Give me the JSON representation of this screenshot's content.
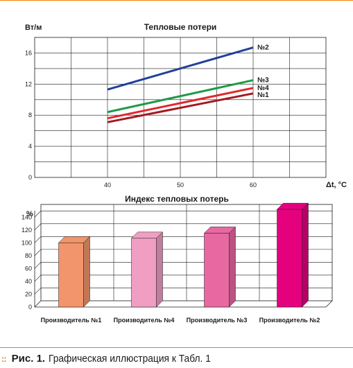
{
  "chart_data": [
    {
      "type": "line",
      "title": "Тепловые потери",
      "ylabel": "Вт/м",
      "xlabel": "Δt, °C",
      "x": [
        40,
        60
      ],
      "xticks": [
        "40",
        "50",
        "60"
      ],
      "yticks": [
        "0",
        "4",
        "8",
        "12",
        "16"
      ],
      "xlim": [
        30,
        70
      ],
      "ylim": [
        0,
        18
      ],
      "grid": true,
      "series": [
        {
          "name": "№2",
          "values": [
            11.3,
            16.7
          ],
          "color": "#22409a"
        },
        {
          "name": "№3",
          "values": [
            8.4,
            12.5
          ],
          "color": "#1f9a48"
        },
        {
          "name": "№4",
          "values": [
            7.6,
            11.5
          ],
          "color": "#e3262d"
        },
        {
          "name": "№1",
          "values": [
            7.1,
            10.8
          ],
          "color": "#a31a1f"
        }
      ]
    },
    {
      "type": "bar",
      "title": "Индекс тепловых потерь",
      "ylabel": "%",
      "yticks": [
        "0",
        "20",
        "40",
        "60",
        "80",
        "100",
        "120",
        "140"
      ],
      "ylim": [
        0,
        150
      ],
      "categories": [
        "Производитель №1",
        "Производитель №4",
        "Производитель №3",
        "Производитель №2"
      ],
      "values": [
        100,
        107,
        115,
        152
      ],
      "colors": [
        "#f2956c",
        "#f19ec3",
        "#e868a2",
        "#e5007e"
      ],
      "grid": true
    }
  ],
  "caption": {
    "dots": "::",
    "label": "Рис. 1.",
    "text": "Графическая иллюстрация к Табл. 1"
  },
  "colors": {
    "accent": "#f07e00",
    "grid": "#1a1a1a"
  }
}
